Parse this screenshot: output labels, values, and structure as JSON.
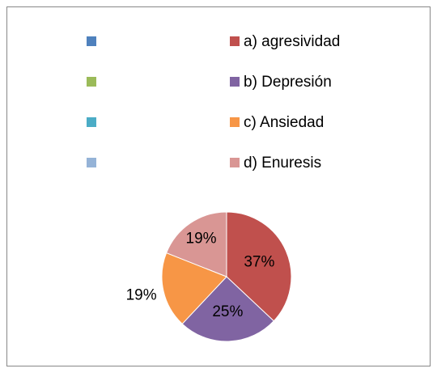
{
  "chart_data": {
    "type": "pie",
    "categories": [
      null,
      "a) agresividad",
      null,
      "b) Depresión",
      null,
      "c) Ansiedad",
      null,
      "d) Enuresis"
    ],
    "values": [
      0,
      37,
      0,
      25,
      0,
      19,
      0,
      19
    ],
    "value_labels": [
      null,
      "37%",
      null,
      "25%",
      null,
      "19%",
      null,
      "19%"
    ],
    "colors": [
      "#4f81bd",
      "#c0504d",
      "#9bbb59",
      "#8064a2",
      "#4bacc6",
      "#f79646",
      "#95b3d7",
      "#d99694"
    ]
  }
}
